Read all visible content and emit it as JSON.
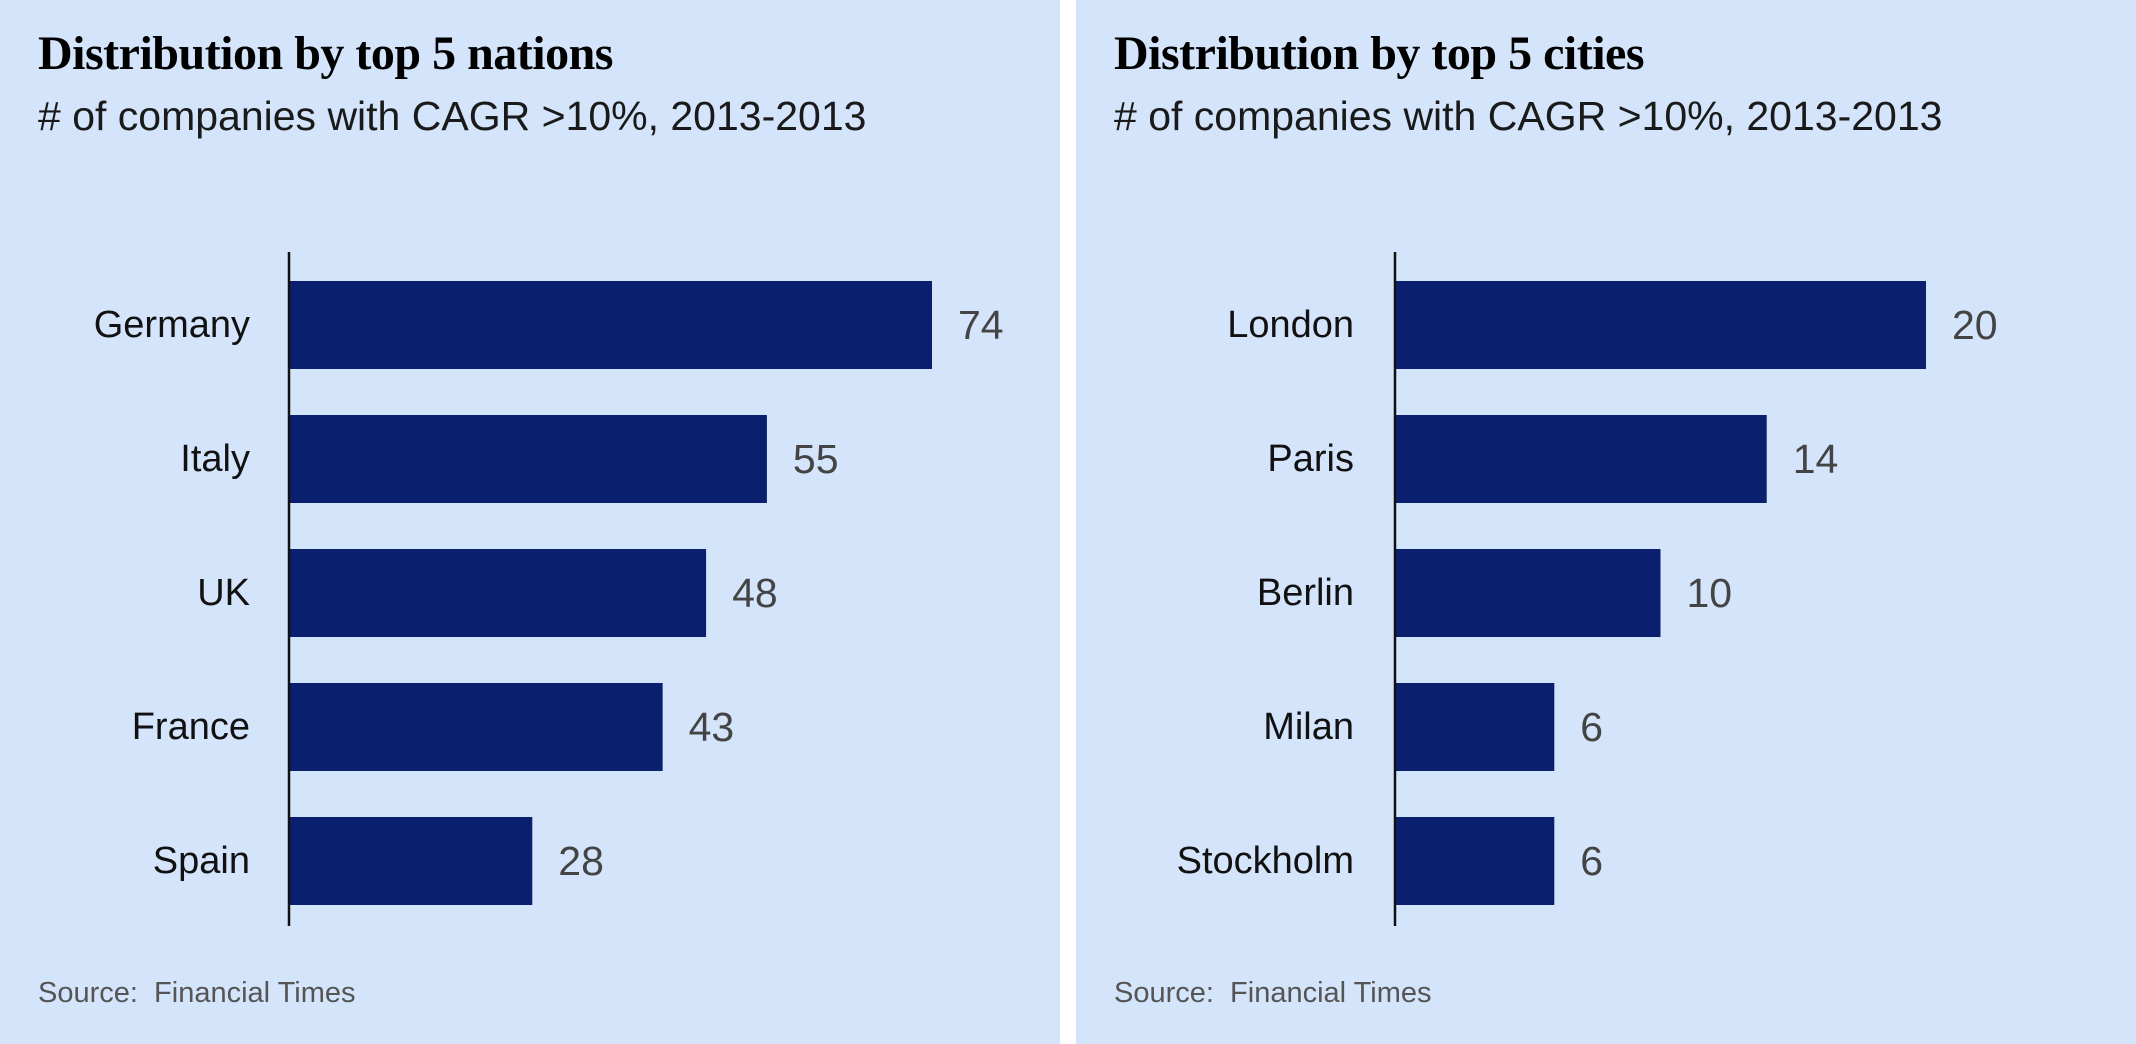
{
  "colors": {
    "bar": "#0a1f6e",
    "panel_background": "#d4e4fb",
    "axis": "#111111"
  },
  "chart_data": [
    {
      "type": "bar",
      "orientation": "horizontal",
      "title": "Distribution by top 5 nations",
      "subtitle": "# of companies with CAGR >10%, 2013-2013",
      "categories": [
        "Germany",
        "Italy",
        "UK",
        "France",
        "Spain"
      ],
      "values": [
        74,
        55,
        48,
        43,
        28
      ],
      "value_labels": [
        "74",
        "55",
        "48",
        "43",
        "28"
      ],
      "xlim": [
        0,
        74
      ],
      "grid": false,
      "source": "Source:  Financial Times"
    },
    {
      "type": "bar",
      "orientation": "horizontal",
      "title": "Distribution by top 5 cities",
      "subtitle": "# of companies with CAGR >10%, 2013-2013",
      "categories": [
        "London",
        "Paris",
        "Berlin",
        "Milan",
        "Stockholm"
      ],
      "values": [
        20,
        14,
        10,
        6,
        6
      ],
      "value_labels": [
        "20",
        "14",
        "10",
        "6",
        "6"
      ],
      "xlim": [
        0,
        20
      ],
      "grid": false,
      "source": "Source:  Financial Times"
    }
  ]
}
